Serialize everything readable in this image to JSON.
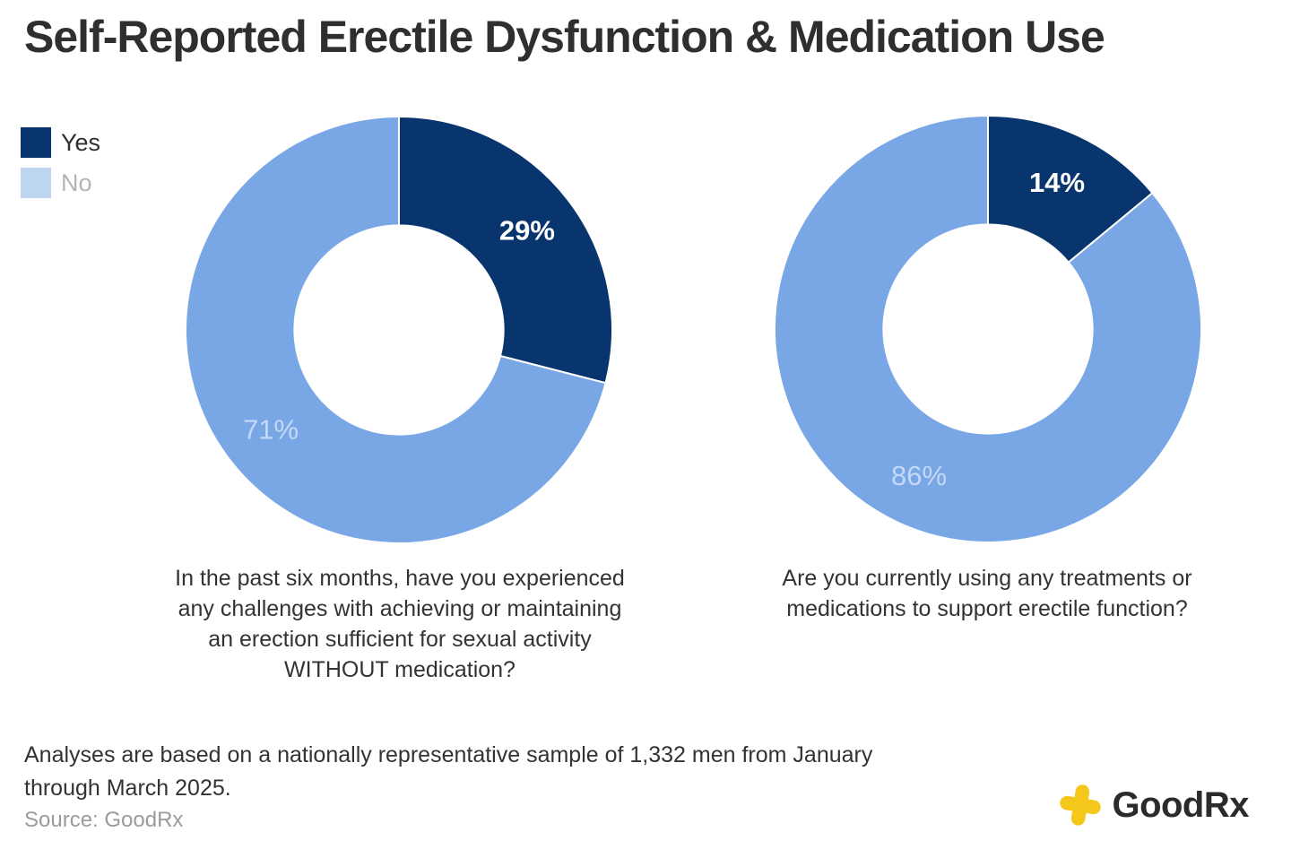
{
  "title": "Self-Reported Erectile Dysfunction & Medication Use",
  "legend": {
    "items": [
      {
        "label": "Yes",
        "swatch_color": "#09356e",
        "label_color": "#2f2f2f"
      },
      {
        "label": "No",
        "swatch_color": "#bed5f1",
        "label_color": "#b4b4b4"
      }
    ]
  },
  "chart_data": [
    {
      "type": "pie",
      "subtype": "donut",
      "title": "",
      "categories": [
        "Yes",
        "No"
      ],
      "values": [
        29,
        71
      ],
      "unit": "%",
      "data_labels": [
        "29%",
        "71%"
      ],
      "data_label_colors": [
        "#ffffff",
        "#c4d9f5"
      ],
      "data_label_bold": [
        true,
        false
      ],
      "slice_colors": [
        "#09356e",
        "#79a7e6"
      ],
      "start_angle_deg": 0,
      "direction": "clockwise",
      "inner_radius_ratio": 0.49,
      "legend_position": "top-left",
      "caption_lines": [
        "In the past six months, have you experienced",
        "any challenges with achieving or maintaining",
        "an erection sufficient for sexual activity",
        "WITHOUT medication?"
      ]
    },
    {
      "type": "pie",
      "subtype": "donut",
      "title": "",
      "categories": [
        "Yes",
        "No"
      ],
      "values": [
        14,
        86
      ],
      "unit": "%",
      "data_labels": [
        "14%",
        "86%"
      ],
      "data_label_colors": [
        "#ffffff",
        "#c4d9f5"
      ],
      "data_label_bold": [
        true,
        false
      ],
      "slice_colors": [
        "#09356e",
        "#79a7e6"
      ],
      "start_angle_deg": 0,
      "direction": "clockwise",
      "inner_radius_ratio": 0.49,
      "legend_position": "top-left",
      "caption_lines": [
        "Are you currently using any treatments or",
        "medications to support erectile function?"
      ]
    }
  ],
  "footer": {
    "note_lines": [
      "Analyses are based on a nationally representative sample of 1,332 men from January",
      "through March 2025."
    ],
    "source": "Source: GoodRx"
  },
  "logo": {
    "text": "GoodRx",
    "icon_color": "#f6c71b",
    "text_color": "#2b2b2b"
  }
}
